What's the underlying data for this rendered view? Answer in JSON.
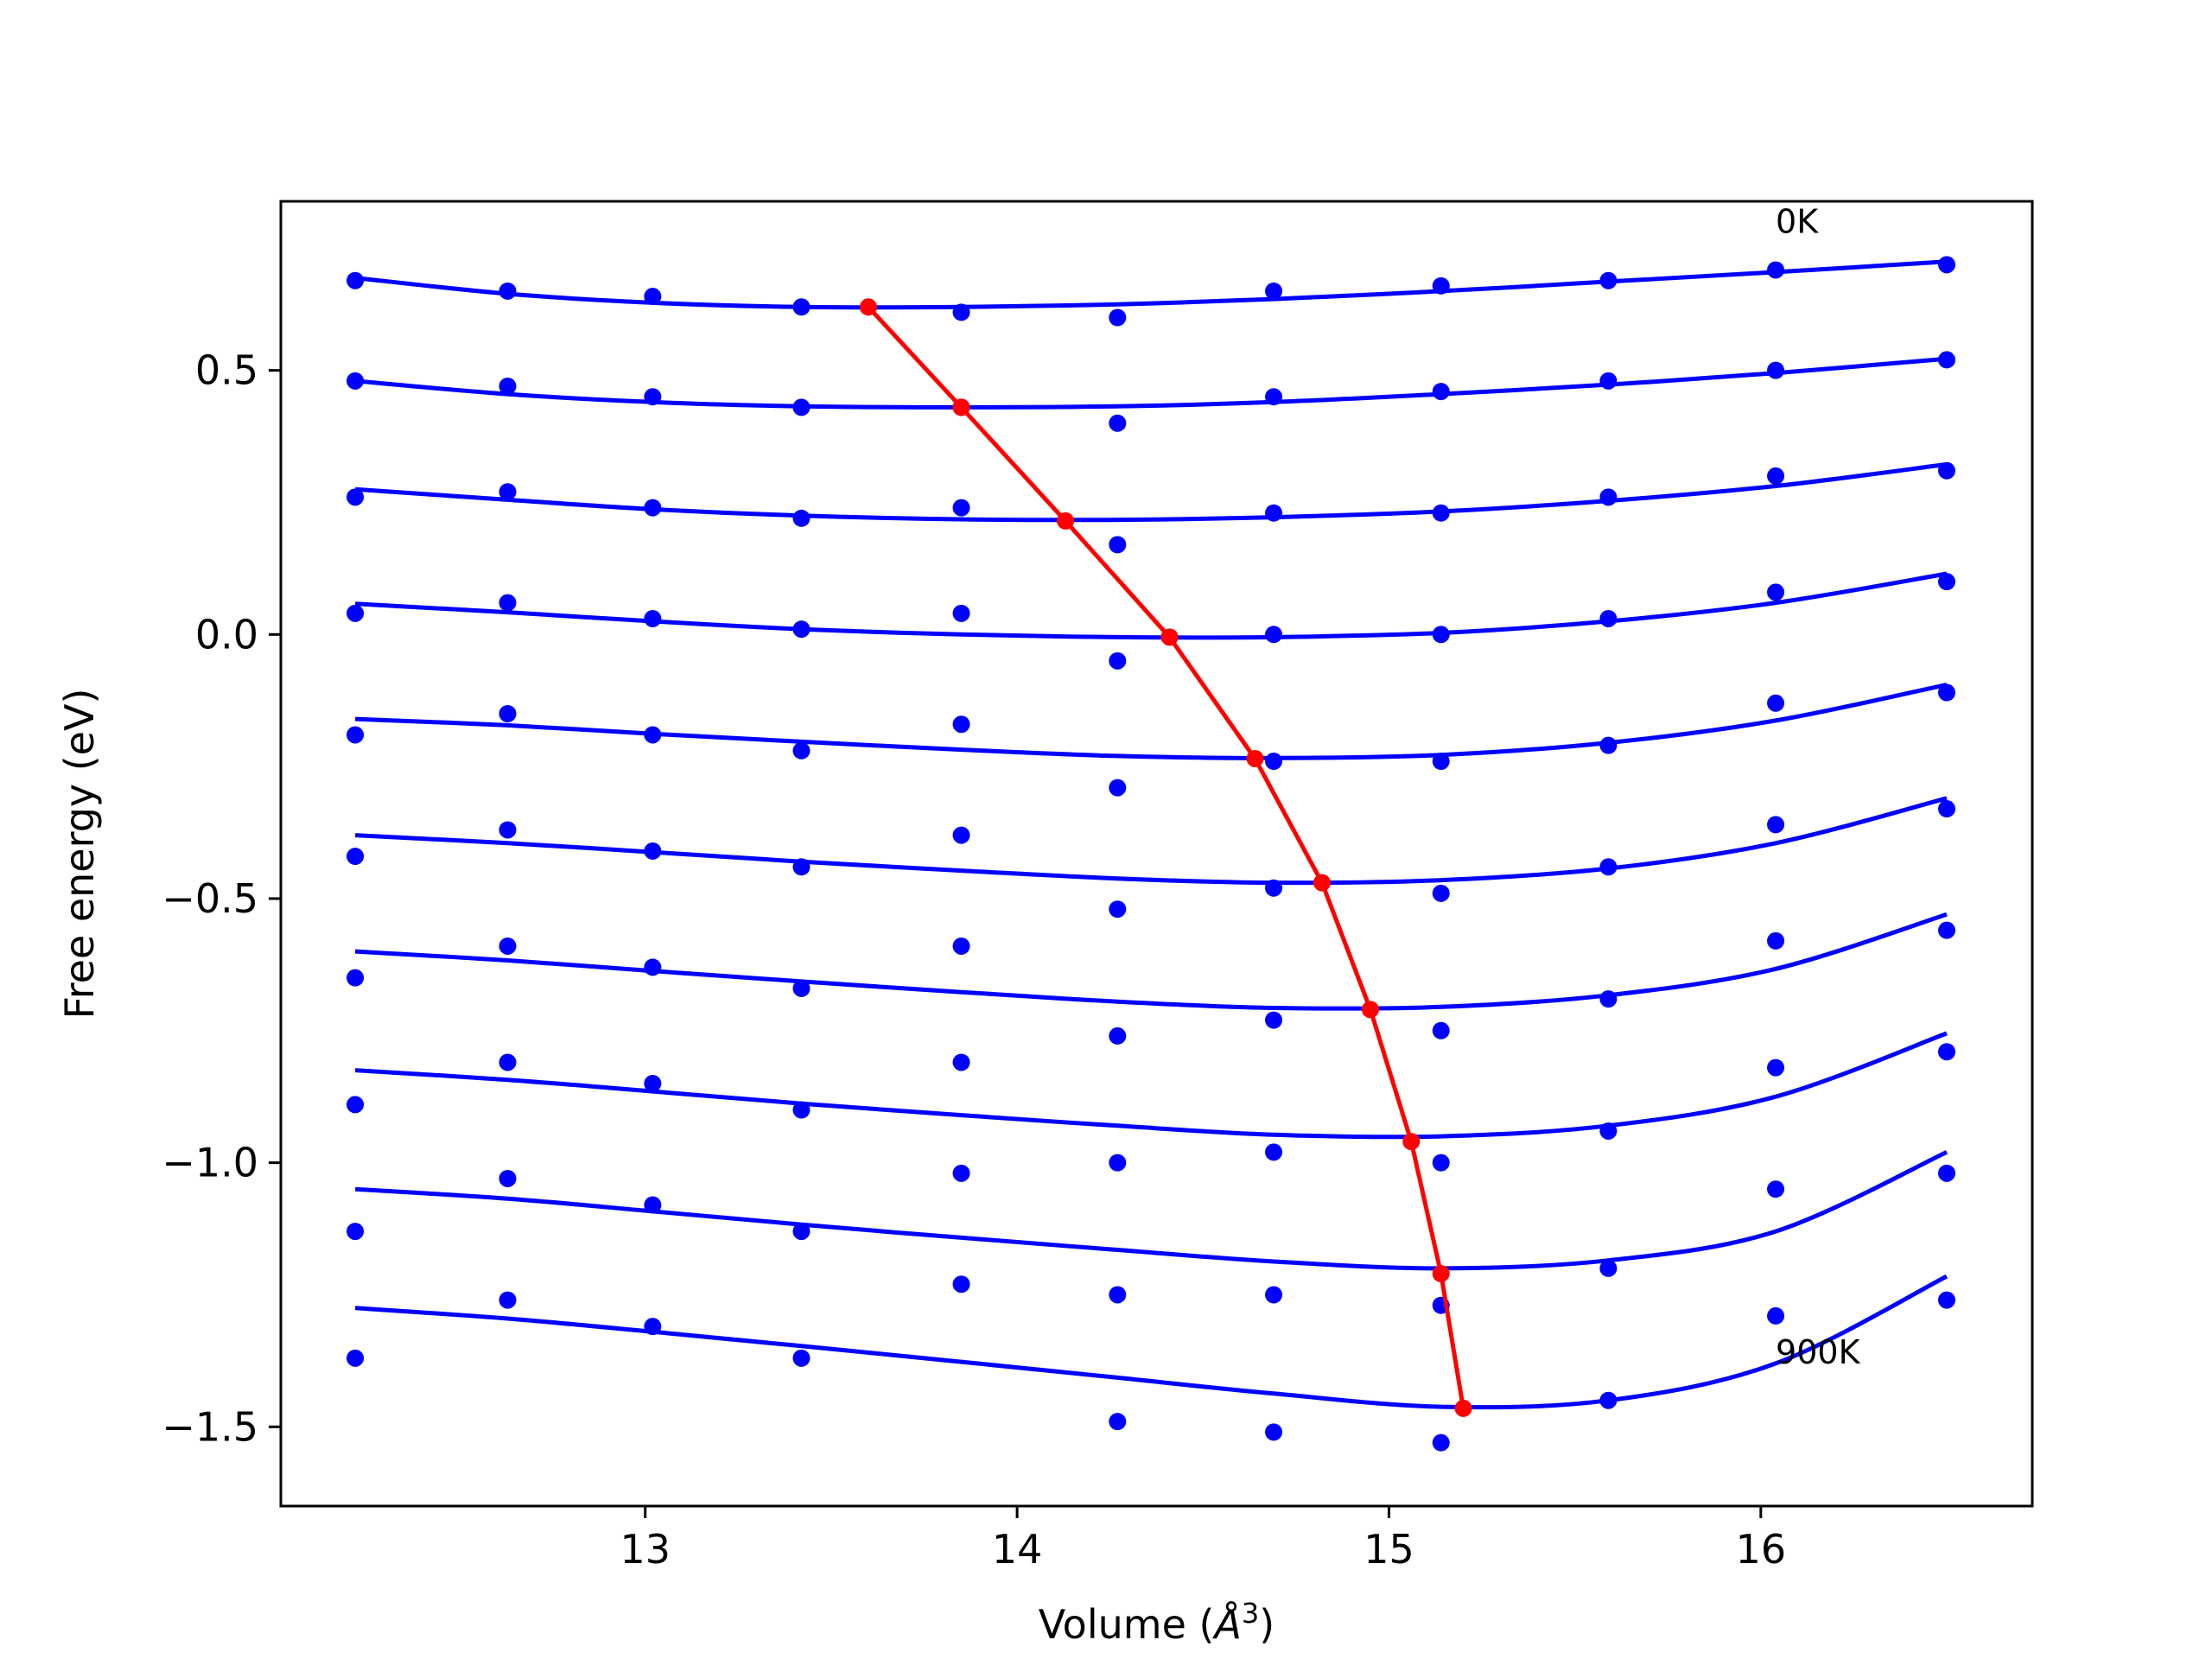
{
  "chart_data": {
    "type": "scatter",
    "xlabel": "Volume (",
    "xlabel_unit": "Å",
    "xlabel_exponent": "3",
    "xlabel_close": ")",
    "ylabel": "Free energy (eV)",
    "xlim": [
      12.02,
      16.73
    ],
    "ylim": [
      -1.65,
      0.82
    ],
    "xticks": [
      13,
      14,
      15,
      16
    ],
    "xtick_labels": [
      "13",
      "14",
      "15",
      "16"
    ],
    "yticks": [
      0.5,
      0.0,
      -0.5,
      -1.0,
      -1.5
    ],
    "ytick_labels": [
      "0.5",
      "0.0",
      "−0.5",
      "−1.0",
      "−1.5"
    ],
    "grid": false,
    "legend": "none",
    "colors": {
      "points": "#0000ff",
      "fits": "#0000ff",
      "minima": "#ff0000",
      "frame": "#000000"
    },
    "annotations": [
      {
        "text": "0K",
        "x": 16.04,
        "y": 0.76
      },
      {
        "text": "900K",
        "x": 16.04,
        "y": -1.38
      }
    ],
    "volumes": [
      12.22,
      12.63,
      13.02,
      13.42,
      13.85,
      14.27,
      14.69,
      15.14,
      15.59,
      16.04,
      16.5
    ],
    "series": [
      {
        "points": [
          0.67,
          0.65,
          0.64,
          0.62,
          0.61,
          0.6,
          0.65,
          0.66,
          0.67,
          0.69,
          0.7
        ],
        "fit": [
          [
            12.22,
            0.675
          ],
          [
            12.63,
            0.645
          ],
          [
            13.02,
            0.628
          ],
          [
            13.42,
            0.62
          ],
          [
            13.85,
            0.62
          ],
          [
            14.27,
            0.625
          ],
          [
            14.69,
            0.635
          ],
          [
            15.14,
            0.65
          ],
          [
            15.59,
            0.668
          ],
          [
            16.04,
            0.686
          ],
          [
            16.5,
            0.706
          ]
        ]
      },
      {
        "points": [
          0.48,
          0.47,
          0.45,
          0.43,
          0.43,
          0.4,
          0.45,
          0.46,
          0.48,
          0.5,
          0.52
        ],
        "fit": [
          [
            12.22,
            0.48
          ],
          [
            12.63,
            0.455
          ],
          [
            13.02,
            0.44
          ],
          [
            13.42,
            0.432
          ],
          [
            13.85,
            0.43
          ],
          [
            14.27,
            0.432
          ],
          [
            14.69,
            0.44
          ],
          [
            15.14,
            0.455
          ],
          [
            15.59,
            0.473
          ],
          [
            16.04,
            0.495
          ],
          [
            16.5,
            0.522
          ]
        ]
      },
      {
        "points": [
          0.26,
          0.27,
          0.24,
          0.22,
          0.24,
          0.17,
          0.23,
          0.23,
          0.26,
          0.3,
          0.31
        ],
        "fit": [
          [
            12.22,
            0.275
          ],
          [
            12.63,
            0.255
          ],
          [
            13.02,
            0.237
          ],
          [
            13.42,
            0.225
          ],
          [
            13.85,
            0.218
          ],
          [
            14.27,
            0.217
          ],
          [
            14.69,
            0.222
          ],
          [
            15.14,
            0.233
          ],
          [
            15.59,
            0.253
          ],
          [
            16.04,
            0.281
          ],
          [
            16.5,
            0.322
          ]
        ]
      },
      {
        "points": [
          0.04,
          0.06,
          0.03,
          0.01,
          0.04,
          -0.05,
          0.0,
          0.0,
          0.03,
          0.08,
          0.1
        ],
        "fit": [
          [
            12.22,
            0.058
          ],
          [
            12.63,
            0.042
          ],
          [
            13.02,
            0.025
          ],
          [
            13.42,
            0.01
          ],
          [
            13.85,
            0.0
          ],
          [
            14.27,
            -0.005
          ],
          [
            14.69,
            -0.005
          ],
          [
            15.14,
            0.003
          ],
          [
            15.59,
            0.025
          ],
          [
            16.04,
            0.06
          ],
          [
            16.5,
            0.115
          ]
        ]
      },
      {
        "points": [
          -0.19,
          -0.15,
          -0.19,
          -0.22,
          -0.17,
          -0.29,
          -0.24,
          -0.24,
          -0.21,
          -0.13,
          -0.11
        ],
        "fit": [
          [
            12.22,
            -0.16
          ],
          [
            12.63,
            -0.172
          ],
          [
            13.02,
            -0.188
          ],
          [
            13.42,
            -0.203
          ],
          [
            13.85,
            -0.218
          ],
          [
            14.27,
            -0.23
          ],
          [
            14.69,
            -0.234
          ],
          [
            15.14,
            -0.228
          ],
          [
            15.59,
            -0.205
          ],
          [
            16.04,
            -0.163
          ],
          [
            16.5,
            -0.095
          ]
        ]
      },
      {
        "points": [
          -0.42,
          -0.37,
          -0.41,
          -0.44,
          -0.38,
          -0.52,
          -0.48,
          -0.49,
          -0.44,
          -0.36,
          -0.33
        ],
        "fit": [
          [
            12.22,
            -0.38
          ],
          [
            12.63,
            -0.395
          ],
          [
            13.02,
            -0.412
          ],
          [
            13.42,
            -0.43
          ],
          [
            13.85,
            -0.447
          ],
          [
            14.27,
            -0.462
          ],
          [
            14.69,
            -0.47
          ],
          [
            15.14,
            -0.465
          ],
          [
            15.59,
            -0.443
          ],
          [
            16.04,
            -0.395
          ],
          [
            16.5,
            -0.31
          ]
        ]
      },
      {
        "points": [
          -0.65,
          -0.59,
          -0.63,
          -0.67,
          -0.59,
          -0.76,
          -0.73,
          -0.75,
          -0.69,
          -0.58,
          -0.56
        ],
        "fit": [
          [
            12.22,
            -0.6
          ],
          [
            12.63,
            -0.617
          ],
          [
            13.02,
            -0.637
          ],
          [
            13.42,
            -0.657
          ],
          [
            13.85,
            -0.677
          ],
          [
            14.27,
            -0.695
          ],
          [
            14.69,
            -0.707
          ],
          [
            15.14,
            -0.705
          ],
          [
            15.59,
            -0.683
          ],
          [
            16.04,
            -0.633
          ],
          [
            16.5,
            -0.53
          ]
        ]
      },
      {
        "points": [
          -0.89,
          -0.81,
          -0.85,
          -0.9,
          -0.81,
          -1.0,
          -0.98,
          -1.0,
          -0.94,
          -0.82,
          -0.79
        ],
        "fit": [
          [
            12.22,
            -0.825
          ],
          [
            12.63,
            -0.843
          ],
          [
            13.02,
            -0.865
          ],
          [
            13.42,
            -0.888
          ],
          [
            13.85,
            -0.91
          ],
          [
            14.27,
            -0.93
          ],
          [
            14.69,
            -0.947
          ],
          [
            15.14,
            -0.95
          ],
          [
            15.59,
            -0.93
          ],
          [
            16.04,
            -0.875
          ],
          [
            16.5,
            -0.755
          ]
        ]
      },
      {
        "points": [
          -1.13,
          -1.03,
          -1.08,
          -1.13,
          -1.02,
          -1.25,
          -1.25,
          -1.27,
          -1.2,
          -1.05,
          -1.02
        ],
        "fit": [
          [
            12.22,
            -1.05
          ],
          [
            12.63,
            -1.068
          ],
          [
            13.02,
            -1.092
          ],
          [
            13.42,
            -1.117
          ],
          [
            13.85,
            -1.142
          ],
          [
            14.27,
            -1.165
          ],
          [
            14.69,
            -1.187
          ],
          [
            15.14,
            -1.2
          ],
          [
            15.59,
            -1.185
          ],
          [
            16.04,
            -1.13
          ],
          [
            16.5,
            -0.98
          ]
        ]
      },
      {
        "points": [
          -1.37,
          -1.26,
          -1.31,
          -1.37,
          -1.23,
          -1.49,
          -1.51,
          -1.53,
          -1.45,
          -1.29,
          -1.26
        ],
        "fit": [
          [
            12.22,
            -1.275
          ],
          [
            12.63,
            -1.295
          ],
          [
            13.02,
            -1.32
          ],
          [
            13.42,
            -1.347
          ],
          [
            13.85,
            -1.377
          ],
          [
            14.27,
            -1.407
          ],
          [
            14.69,
            -1.437
          ],
          [
            15.14,
            -1.462
          ],
          [
            15.59,
            -1.45
          ],
          [
            16.04,
            -1.38
          ],
          [
            16.5,
            -1.215
          ]
        ]
      }
    ],
    "minima": {
      "x": [
        13.6,
        13.85,
        14.13,
        14.41,
        14.64,
        14.82,
        14.95,
        15.06,
        15.14,
        15.2
      ],
      "y": [
        0.62,
        0.43,
        0.215,
        -0.005,
        -0.235,
        -0.47,
        -0.71,
        -0.96,
        -1.21,
        -1.465
      ]
    }
  }
}
